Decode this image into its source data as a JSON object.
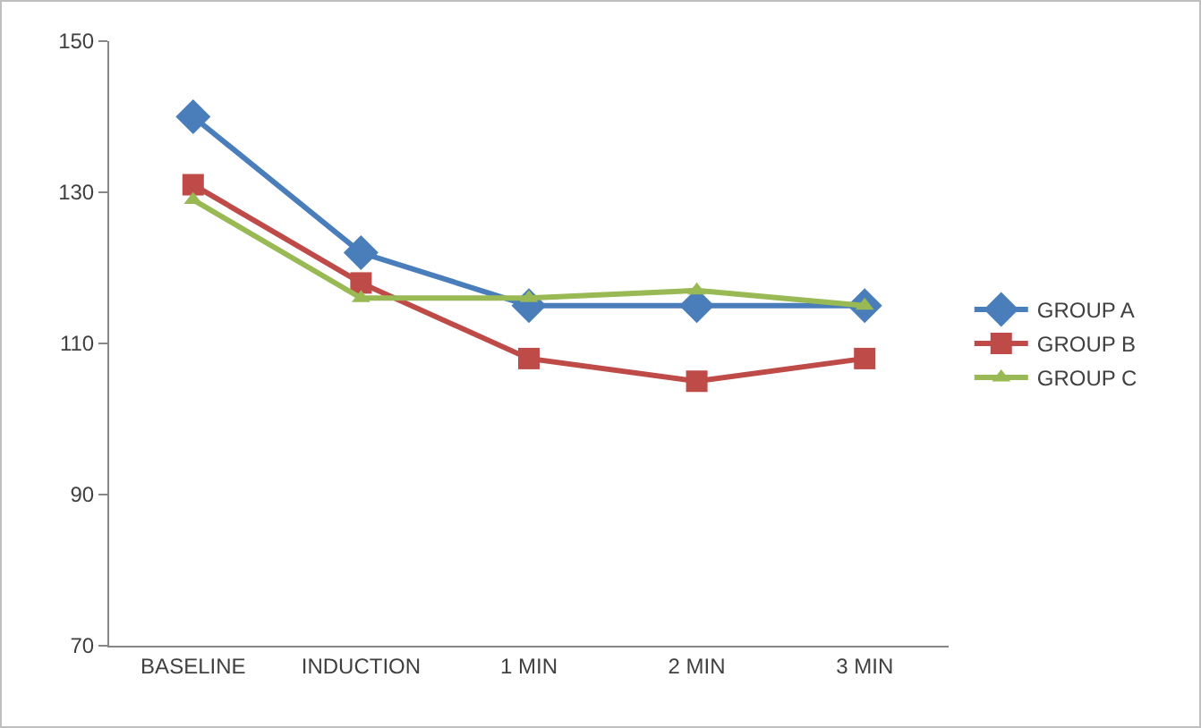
{
  "chart_data": {
    "type": "line",
    "categories": [
      "BASELINE",
      "INDUCTION",
      "1 MIN",
      "2 MIN",
      "3 MIN"
    ],
    "ylim": [
      70,
      150
    ],
    "yticks": [
      70,
      90,
      110,
      130,
      150
    ],
    "grid": false,
    "legend": "right",
    "line_style": "solid",
    "series": [
      {
        "name": "GROUP A",
        "color": "#4a7ebb",
        "marker": "diamond",
        "values": [
          140,
          122,
          115,
          115,
          115
        ]
      },
      {
        "name": "GROUP B",
        "color": "#be4b48",
        "marker": "square",
        "values": [
          131,
          118,
          108,
          105,
          108
        ]
      },
      {
        "name": "GROUP C",
        "color": "#98b954",
        "marker": "triangle",
        "values": [
          129,
          116,
          116,
          117,
          115
        ]
      }
    ]
  }
}
